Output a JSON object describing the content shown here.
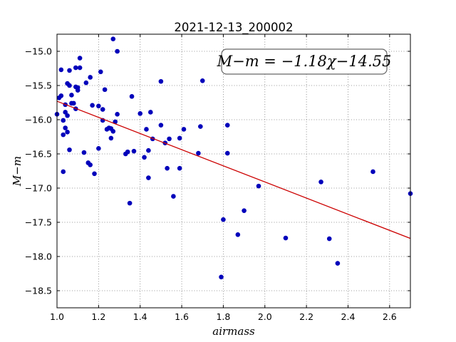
{
  "chart_data": {
    "type": "scatter",
    "title": "2021-12-13_200002",
    "xlabel": "airmass",
    "ylabel": "M−m",
    "xlim": [
      1.0,
      2.7
    ],
    "ylim": [
      -18.75,
      -14.75
    ],
    "y_inverted": true,
    "xticks": [
      1.0,
      1.2,
      1.4,
      1.6,
      1.8,
      2.0,
      2.2,
      2.4,
      2.6
    ],
    "xtick_labels": [
      "1.0",
      "1.2",
      "1.4",
      "1.6",
      "1.8",
      "2.0",
      "2.2",
      "2.4",
      "2.6"
    ],
    "yticks": [
      -15.0,
      -15.5,
      -16.0,
      -16.5,
      -17.0,
      -17.5,
      -18.0,
      -18.5
    ],
    "ytick_labels": [
      "−15.0",
      "−15.5",
      "−16.0",
      "−16.5",
      "−17.0",
      "−17.5",
      "−18.0",
      "−18.5"
    ],
    "grid": true,
    "annotation": "M−m = −1.18χ−14.55",
    "fit_line": {
      "slope": -1.18,
      "intercept": -14.55,
      "color": "#cc0000"
    },
    "point_color": "#0000bb",
    "points": [
      [
        1.0,
        -15.92
      ],
      [
        1.01,
        -15.68
      ],
      [
        1.02,
        -15.65
      ],
      [
        1.02,
        -15.27
      ],
      [
        1.03,
        -16.22
      ],
      [
        1.03,
        -16.01
      ],
      [
        1.03,
        -16.76
      ],
      [
        1.04,
        -16.12
      ],
      [
        1.04,
        -15.89
      ],
      [
        1.04,
        -15.78
      ],
      [
        1.05,
        -15.47
      ],
      [
        1.05,
        -15.94
      ],
      [
        1.05,
        -16.18
      ],
      [
        1.06,
        -15.28
      ],
      [
        1.06,
        -15.5
      ],
      [
        1.06,
        -16.44
      ],
      [
        1.07,
        -15.64
      ],
      [
        1.07,
        -15.76
      ],
      [
        1.08,
        -15.76
      ],
      [
        1.09,
        -15.24
      ],
      [
        1.09,
        -15.52
      ],
      [
        1.09,
        -15.84
      ],
      [
        1.1,
        -15.57
      ],
      [
        1.1,
        -15.53
      ],
      [
        1.11,
        -15.24
      ],
      [
        1.11,
        -15.1
      ],
      [
        1.13,
        -16.48
      ],
      [
        1.14,
        -15.46
      ],
      [
        1.15,
        -16.63
      ],
      [
        1.16,
        -16.66
      ],
      [
        1.16,
        -15.38
      ],
      [
        1.17,
        -15.79
      ],
      [
        1.18,
        -16.79
      ],
      [
        1.2,
        -15.8
      ],
      [
        1.2,
        -16.42
      ],
      [
        1.21,
        -15.3
      ],
      [
        1.22,
        -15.85
      ],
      [
        1.23,
        -15.56
      ],
      [
        1.22,
        -16.01
      ],
      [
        1.24,
        -16.14
      ],
      [
        1.25,
        -16.12
      ],
      [
        1.26,
        -16.27
      ],
      [
        1.26,
        -16.13
      ],
      [
        1.27,
        -16.17
      ],
      [
        1.27,
        -14.82
      ],
      [
        1.28,
        -16.03
      ],
      [
        1.29,
        -15.92
      ],
      [
        1.29,
        -15.0
      ],
      [
        1.33,
        -16.5
      ],
      [
        1.34,
        -16.47
      ],
      [
        1.35,
        -17.22
      ],
      [
        1.36,
        -15.66
      ],
      [
        1.37,
        -16.46
      ],
      [
        1.4,
        -15.91
      ],
      [
        1.42,
        -16.55
      ],
      [
        1.43,
        -16.14
      ],
      [
        1.44,
        -16.45
      ],
      [
        1.44,
        -16.85
      ],
      [
        1.45,
        -15.89
      ],
      [
        1.46,
        -16.28
      ],
      [
        1.5,
        -15.44
      ],
      [
        1.5,
        -16.08
      ],
      [
        1.52,
        -16.34
      ],
      [
        1.53,
        -16.71
      ],
      [
        1.54,
        -16.28
      ],
      [
        1.56,
        -17.12
      ],
      [
        1.59,
        -16.71
      ],
      [
        1.59,
        -16.27
      ],
      [
        1.61,
        -16.14
      ],
      [
        1.68,
        -16.49
      ],
      [
        1.69,
        -16.1
      ],
      [
        1.7,
        -15.43
      ],
      [
        1.79,
        -18.3
      ],
      [
        1.8,
        -17.46
      ],
      [
        1.82,
        -16.49
      ],
      [
        1.82,
        -16.08
      ],
      [
        1.87,
        -17.68
      ],
      [
        1.9,
        -17.33
      ],
      [
        1.97,
        -16.97
      ],
      [
        2.1,
        -17.73
      ],
      [
        2.27,
        -16.91
      ],
      [
        2.31,
        -17.74
      ],
      [
        2.35,
        -18.1
      ],
      [
        2.52,
        -16.76
      ],
      [
        2.7,
        -17.08
      ]
    ]
  }
}
